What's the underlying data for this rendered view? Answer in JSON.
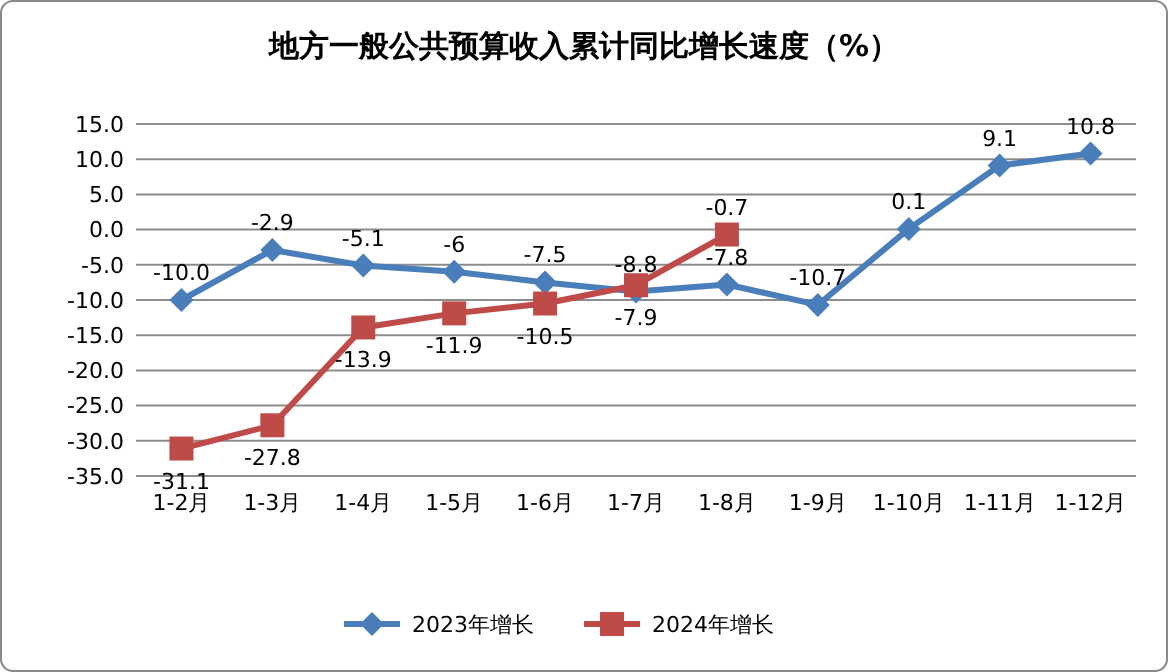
{
  "chart_data": {
    "type": "line",
    "title": "地方一般公共预算收入累计同比增长速度（%）",
    "categories": [
      "1-2月",
      "1-3月",
      "1-4月",
      "1-5月",
      "1-6月",
      "1-7月",
      "1-8月",
      "1-9月",
      "1-10月",
      "1-11月",
      "1-12月"
    ],
    "series": [
      {
        "name": "2023年增长",
        "color": "#4a7ebb",
        "marker": "diamond",
        "values": [
          -10.0,
          -2.9,
          -5.1,
          -6,
          -7.5,
          -8.8,
          -7.8,
          -10.7,
          0.1,
          9.1,
          10.8
        ],
        "value_labels": [
          "-10.0",
          "-2.9",
          "-5.1",
          "-6",
          "-7.5",
          "-8.8",
          "-7.8",
          "-10.7",
          "0.1",
          "9.1",
          "10.8"
        ]
      },
      {
        "name": "2024年增长",
        "color": "#be4b48",
        "marker": "square",
        "values": [
          -31.1,
          -27.8,
          -13.9,
          -11.9,
          -10.5,
          -7.9,
          -0.7,
          null,
          null,
          null,
          null
        ],
        "value_labels": [
          "-31.1",
          "-27.8",
          "-13.9",
          "-11.9",
          "-10.5",
          "-7.9",
          "-0.7",
          null,
          null,
          null,
          null
        ]
      }
    ],
    "ylim": [
      -35,
      15
    ],
    "yticks": [
      {
        "value": 15,
        "label": "15.0"
      },
      {
        "value": 10,
        "label": "10.0"
      },
      {
        "value": 5,
        "label": "5.0"
      },
      {
        "value": 0,
        "label": "0.0"
      },
      {
        "value": -5,
        "label": "-5.0"
      },
      {
        "value": -10,
        "label": "-10.0"
      },
      {
        "value": -15,
        "label": "-15.0"
      },
      {
        "value": -20,
        "label": "-20.0"
      },
      {
        "value": -25,
        "label": "-25.0"
      },
      {
        "value": -30,
        "label": "-30.0"
      },
      {
        "value": -35,
        "label": "-35.0"
      }
    ],
    "grid": "y",
    "legend": "bottom"
  }
}
